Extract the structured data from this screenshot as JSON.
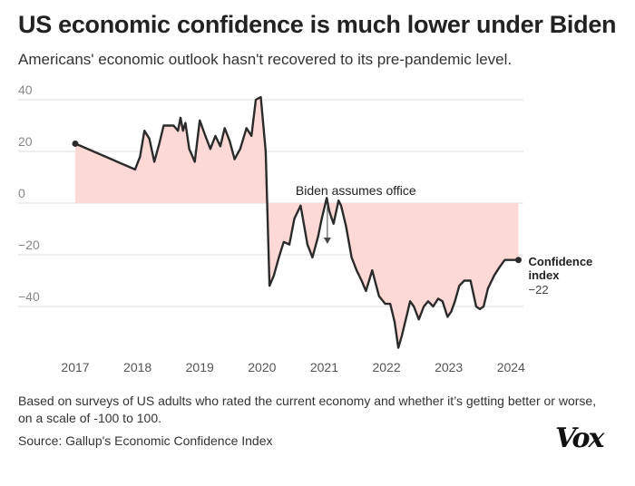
{
  "title": "US economic confidence is much lower under Biden",
  "subtitle": "Americans' economic outlook hasn't recovered to its pre-pandemic level.",
  "note": "Based on surveys of US adults who rated the current economy and whether it’s getting better or worse, on a scale of -100 to 100.",
  "source": "Source: Gallup's Economic Confidence Index",
  "logo": "Vox",
  "colors": {
    "line": "#2b2b2b",
    "fill": "#fcd9d6",
    "grid": "#dcdcdc",
    "text": "#222222",
    "axis_text": "#888888"
  },
  "chart_data": {
    "type": "area",
    "title": "US economic confidence is much lower under Biden",
    "xlabel": "",
    "ylabel": "",
    "xlim": [
      2017.0,
      2024.2
    ],
    "ylim": [
      -58,
      42
    ],
    "y_ticks": [
      40,
      20,
      0,
      -20,
      -40
    ],
    "y_tick_labels": [
      "40",
      "20",
      "0",
      "−20",
      "−40"
    ],
    "x_ticks": [
      2017,
      2018,
      2019,
      2020,
      2021,
      2022,
      2023,
      2024
    ],
    "x_tick_labels": [
      "2017",
      "2018",
      "2019",
      "2020",
      "2021",
      "2022",
      "2023",
      "2024"
    ],
    "grid": true,
    "series": [
      {
        "name": "Confidence index",
        "x": [
          2017.0,
          2017.96,
          2018.04,
          2018.11,
          2018.19,
          2018.27,
          2018.35,
          2018.42,
          2018.5,
          2018.58,
          2018.65,
          2018.69,
          2018.73,
          2018.77,
          2018.83,
          2018.92,
          2019.0,
          2019.09,
          2019.17,
          2019.25,
          2019.33,
          2019.4,
          2019.48,
          2019.56,
          2019.65,
          2019.75,
          2019.83,
          2019.9,
          2019.98,
          2020.06,
          2020.12,
          2020.19,
          2020.27,
          2020.35,
          2020.44,
          2020.52,
          2020.62,
          2020.73,
          2020.81,
          2020.9,
          2020.96,
          2021.04,
          2021.08,
          2021.15,
          2021.23,
          2021.27,
          2021.35,
          2021.44,
          2021.52,
          2021.6,
          2021.67,
          2021.77,
          2021.88,
          2021.98,
          2022.06,
          2022.13,
          2022.19,
          2022.25,
          2022.33,
          2022.38,
          2022.44,
          2022.52,
          2022.6,
          2022.67,
          2022.75,
          2022.83,
          2022.9,
          2022.98,
          2023.04,
          2023.1,
          2023.17,
          2023.25,
          2023.35,
          2023.44,
          2023.5,
          2023.56,
          2023.63,
          2023.73,
          2023.81,
          2023.9,
          2023.98,
          2024.06,
          2024.12
        ],
        "values": [
          23,
          13,
          18,
          28,
          25,
          16,
          23,
          30,
          30,
          30,
          28,
          33,
          28,
          31,
          21,
          16,
          32,
          26,
          21,
          26,
          22,
          29,
          24,
          17,
          21,
          29,
          26,
          40,
          41,
          20,
          -32,
          -28,
          -21,
          -15,
          -16,
          -6,
          -1,
          -16,
          -21,
          -13,
          -6,
          2,
          -3,
          -8,
          1,
          -1,
          -9,
          -21,
          -26,
          -30,
          -34,
          -26,
          -36,
          -39,
          -39,
          -46,
          -56,
          -51,
          -43,
          -38,
          -40,
          -45,
          -40,
          -38,
          -40,
          -37,
          -38,
          -44,
          -42,
          -38,
          -32,
          -30,
          -30,
          -40,
          -41,
          -40,
          -33,
          -28,
          -25,
          -22,
          -22,
          -22,
          -22
        ]
      }
    ],
    "annotations": [
      {
        "text": "Biden assumes office",
        "x": 2021.05,
        "y": -21
      },
      {
        "text": "Confidence",
        "x": 2024.12,
        "y": -22
      },
      {
        "text": "index",
        "x": 2024.12,
        "y": -22
      },
      {
        "text": "−22",
        "x": 2024.12,
        "y": -22
      }
    ]
  }
}
